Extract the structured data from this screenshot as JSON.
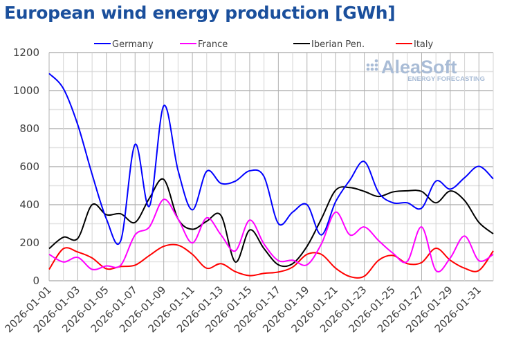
{
  "chart_data": {
    "type": "line",
    "title": "European wind energy production [GWh]",
    "xlabel": "",
    "ylabel": "",
    "ylim": [
      0,
      1200
    ],
    "yticks": [
      0,
      200,
      400,
      600,
      800,
      1000,
      1200
    ],
    "grid": true,
    "legend_position": "top",
    "watermark": {
      "brand": "AleaSoft",
      "tagline": "ENERGY FORECASTING"
    },
    "x": [
      "2026-01-01",
      "2026-01-02",
      "2026-01-03",
      "2026-01-04",
      "2026-01-05",
      "2026-01-06",
      "2026-01-07",
      "2026-01-08",
      "2026-01-09",
      "2026-01-10",
      "2026-01-11",
      "2026-01-12",
      "2026-01-13",
      "2026-01-14",
      "2026-01-15",
      "2026-01-16",
      "2026-01-17",
      "2026-01-18",
      "2026-01-19",
      "2026-01-20",
      "2026-01-21",
      "2026-01-22",
      "2026-01-23",
      "2026-01-24",
      "2026-01-25",
      "2026-01-26",
      "2026-01-27",
      "2026-01-28",
      "2026-01-29",
      "2026-01-30",
      "2026-01-31",
      "2026-02-01"
    ],
    "xtick_labels": [
      "2026-01-01",
      "2026-01-03",
      "2026-01-05",
      "2026-01-07",
      "2026-01-09",
      "2026-01-11",
      "2026-01-13",
      "2026-01-15",
      "2026-01-17",
      "2026-01-19",
      "2026-01-21",
      "2026-01-23",
      "2026-01-25",
      "2026-01-27",
      "2026-01-29",
      "2026-01-31"
    ],
    "series": [
      {
        "name": "Germany",
        "color": "#0000ff",
        "values": [
          1090,
          1010,
          820,
          560,
          325,
          211,
          717,
          392,
          920,
          580,
          373,
          576,
          512,
          524,
          578,
          548,
          301,
          361,
          400,
          241,
          416,
          530,
          627,
          464,
          410,
          410,
          382,
          524,
          482,
          542,
          602,
          536
        ]
      },
      {
        "name": "France",
        "color": "#ff00ff",
        "values": [
          139,
          99,
          123,
          60,
          78,
          82,
          241,
          283,
          428,
          325,
          199,
          331,
          241,
          157,
          319,
          193,
          106,
          108,
          84,
          193,
          361,
          241,
          283,
          211,
          145,
          102,
          283,
          54,
          120,
          235,
          106,
          139
        ]
      },
      {
        "name": "Iberian Pen.",
        "color": "#000000",
        "values": [
          169,
          229,
          223,
          400,
          347,
          352,
          307,
          434,
          533,
          325,
          271,
          313,
          343,
          99,
          267,
          169,
          84,
          90,
          181,
          325,
          476,
          490,
          470,
          443,
          467,
          473,
          470,
          410,
          472,
          422,
          307,
          247
        ]
      },
      {
        "name": "Italy",
        "color": "#ff0000",
        "values": [
          60,
          169,
          151,
          120,
          63,
          75,
          82,
          133,
          181,
          187,
          139,
          66,
          90,
          48,
          27,
          39,
          46,
          72,
          139,
          139,
          66,
          22,
          24,
          108,
          133,
          90,
          96,
          171,
          108,
          66,
          54,
          157
        ]
      }
    ]
  }
}
